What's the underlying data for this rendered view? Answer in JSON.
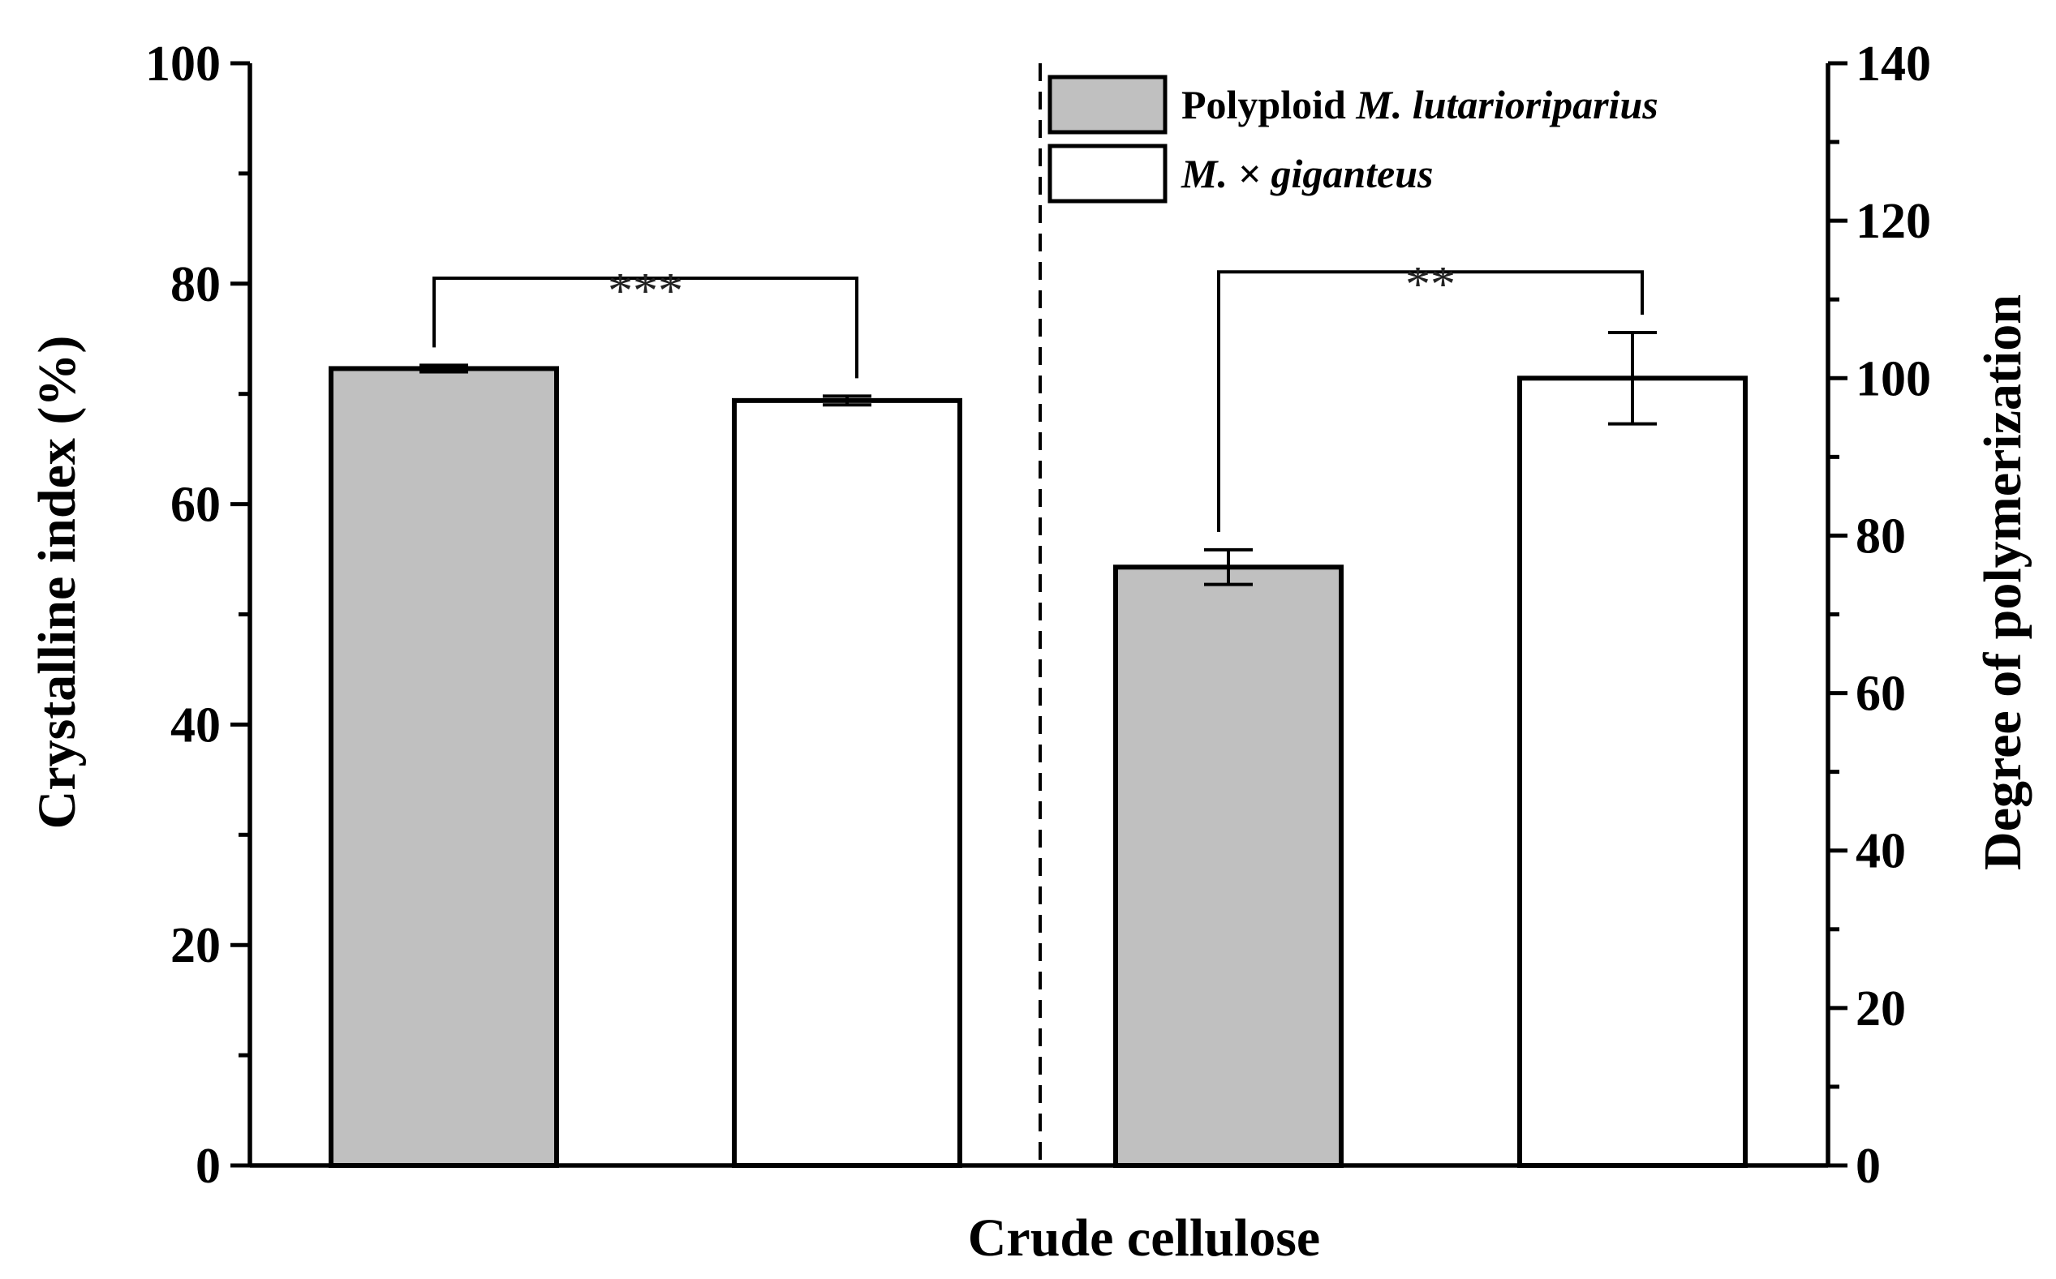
{
  "chart_data": {
    "type": "bar",
    "x_title": "Crude cellulose",
    "left_axis": {
      "title": "Crystalline index (%)",
      "range": [
        0,
        100
      ],
      "ticks": [
        0,
        20,
        40,
        60,
        80,
        100
      ],
      "minor_step": 10
    },
    "right_axis": {
      "title": "Degree of polymerization",
      "range": [
        0,
        140
      ],
      "ticks": [
        0,
        20,
        40,
        60,
        80,
        100,
        120,
        140
      ],
      "minor_step": 10
    },
    "legend": {
      "position": "top-center",
      "items": [
        {
          "label_prefix": "Polyploid ",
          "label_italic": "M. lutarioriparius",
          "fill": "#c0c0c0"
        },
        {
          "label_prefix": "",
          "label_italic": "M. × giganteus",
          "fill": "#ffffff"
        }
      ]
    },
    "bars": [
      {
        "series": "Polyploid M. lutarioriparius",
        "axis": "left",
        "value": 72.3,
        "error": 0.3,
        "fill": "#c0c0c0"
      },
      {
        "series": "M. × giganteus",
        "axis": "left",
        "value": 69.4,
        "error": 0.4,
        "fill": "#ffffff"
      },
      {
        "series": "Polyploid M. lutarioriparius",
        "axis": "right",
        "value": 76,
        "error": 2.2,
        "fill": "#c0c0c0"
      },
      {
        "series": "M. × giganteus",
        "axis": "right",
        "value": 100,
        "error": 5.8,
        "fill": "#ffffff"
      }
    ],
    "significance": [
      {
        "label": "***",
        "from_bar": 0,
        "to_bar": 1,
        "level": 80.5,
        "axis": "left"
      },
      {
        "label": "**",
        "from_bar": 2,
        "to_bar": 3,
        "level": 113.5,
        "axis": "right"
      }
    ],
    "divider": "dashed"
  }
}
